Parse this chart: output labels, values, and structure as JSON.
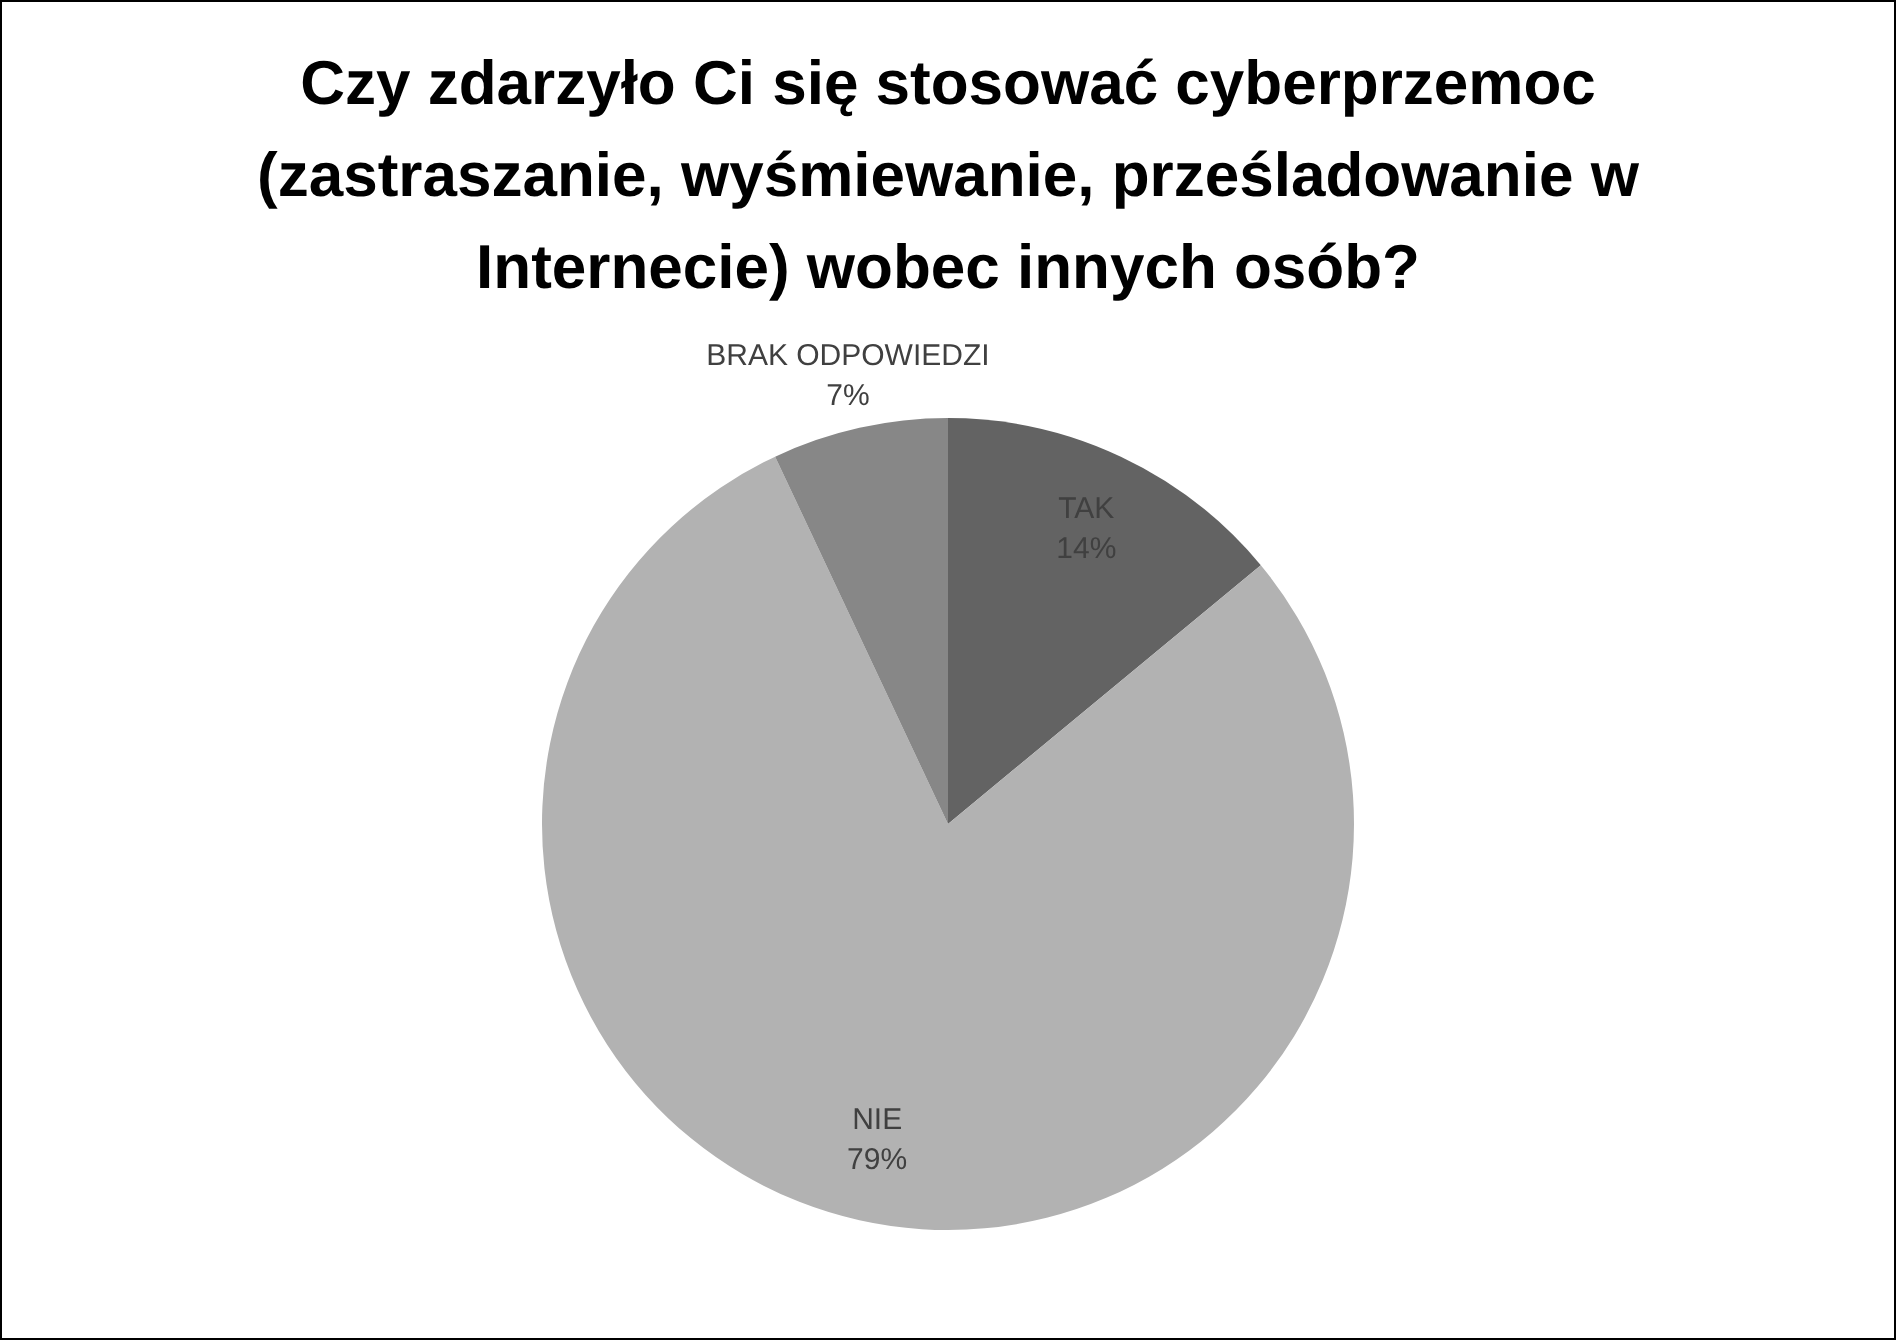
{
  "chart_data": {
    "type": "pie",
    "title": "Czy zdarzyło Ci się stosować cyberprzemoc (zastraszanie, wyśmiewanie, prześladowanie w Internecie) wobec innych osób?",
    "categories": [
      "TAK",
      "NIE",
      "BRAK ODPOWIEDZI"
    ],
    "values": [
      14,
      79,
      7
    ],
    "colors": [
      "#636363",
      "#b2b2b2",
      "#878787"
    ],
    "value_labels": [
      "14%",
      "79%",
      "7%"
    ],
    "legend": false
  }
}
